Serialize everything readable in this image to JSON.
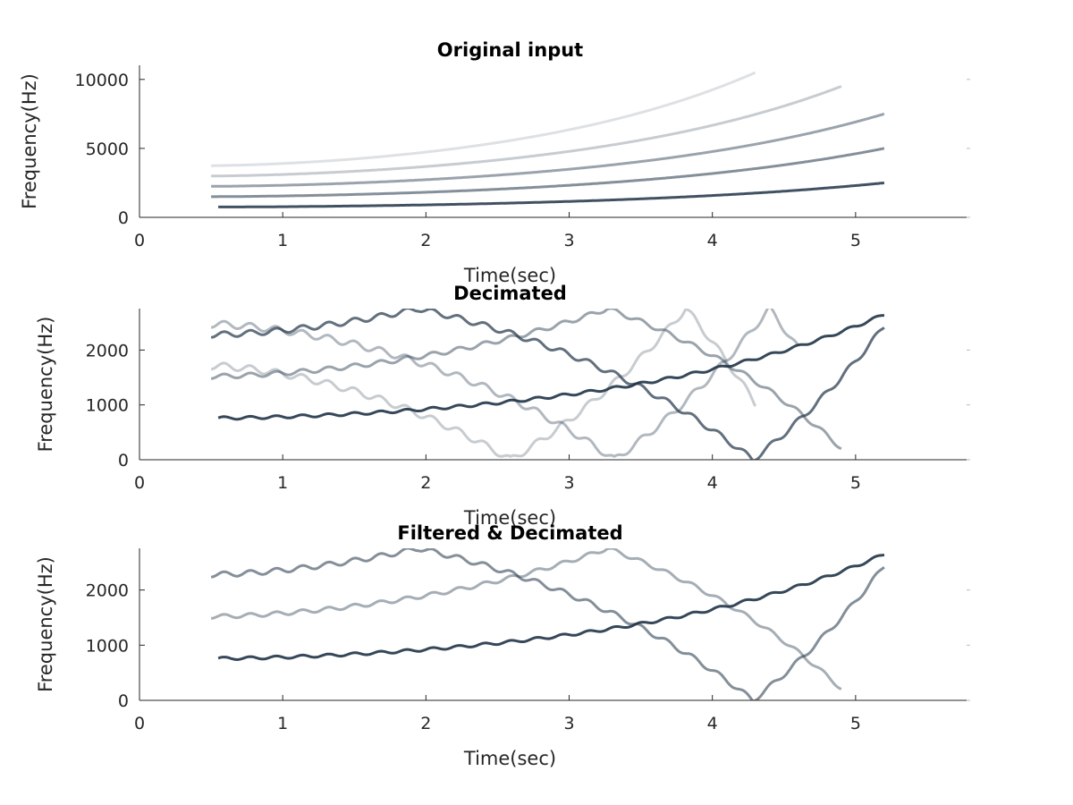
{
  "figure": {
    "background": "#ffffff",
    "mark_color": "#1f3347"
  },
  "chart_data": [
    {
      "type": "heatmap",
      "title": "Original input",
      "xlabel": "Time(sec)",
      "ylabel": "Frequency(Hz)",
      "xlim": [
        0,
        5.8
      ],
      "ylim": [
        0,
        11025
      ],
      "x_ticks": [
        0,
        1,
        2,
        3,
        4,
        5
      ],
      "y_ticks": [
        0,
        5000,
        10000
      ],
      "grid": false,
      "box": "off",
      "series": [
        {
          "t_start": 0.55,
          "t_end": 5.2,
          "f_start": 750,
          "f_end": 2500,
          "curve": "exp",
          "vibrato_hz": 0,
          "intensity": 0.85
        },
        {
          "t_start": 0.5,
          "t_end": 5.2,
          "f_start": 1500,
          "f_end": 5000,
          "curve": "exp",
          "vibrato_hz": 0,
          "intensity": 0.55
        },
        {
          "t_start": 0.5,
          "t_end": 5.2,
          "f_start": 2250,
          "f_end": 7500,
          "curve": "exp",
          "vibrato_hz": 0,
          "intensity": 0.45
        },
        {
          "t_start": 0.5,
          "t_end": 4.9,
          "f_start": 3000,
          "f_end": 9500,
          "curve": "exp",
          "vibrato_hz": 0,
          "intensity": 0.25
        },
        {
          "t_start": 0.5,
          "t_end": 4.3,
          "f_start": 3750,
          "f_end": 10500,
          "curve": "exp",
          "vibrato_hz": 0,
          "intensity": 0.15
        }
      ]
    },
    {
      "type": "heatmap",
      "title": "Decimated",
      "xlabel": "Time(sec)",
      "ylabel": "Frequency(Hz)",
      "xlim": [
        0,
        5.8
      ],
      "ylim": [
        0,
        2756
      ],
      "x_ticks": [
        0,
        1,
        2,
        3,
        4,
        5
      ],
      "y_ticks": [
        0,
        1000,
        2000
      ],
      "grid": false,
      "box": "off",
      "series": [
        {
          "t_start": 0.55,
          "t_end": 5.2,
          "f_start": 760,
          "f_end": 2650,
          "curve": "exp",
          "vibrato_hz": 25,
          "intensity": 0.9
        },
        {
          "t_start": 0.5,
          "t_end": 4.9,
          "f_start": 1520,
          "f_end": 5300,
          "curve": "exp",
          "alias": true,
          "vibrato_hz": 40,
          "intensity": 0.45
        },
        {
          "t_start": 0.5,
          "t_end": 5.2,
          "f_start": 2280,
          "f_end": 7950,
          "curve": "exp",
          "alias": true,
          "vibrato_hz": 50,
          "intensity": 0.7
        },
        {
          "t_start": 0.5,
          "t_end": 4.6,
          "f_start": 3040,
          "f_end": 9000,
          "curve": "exp",
          "alias": true,
          "vibrato_hz": 60,
          "intensity": 0.35
        },
        {
          "t_start": 0.5,
          "t_end": 4.3,
          "f_start": 3800,
          "f_end": 10000,
          "curve": "exp",
          "alias": true,
          "vibrato_hz": 60,
          "intensity": 0.25
        }
      ]
    },
    {
      "type": "heatmap",
      "title": "Filtered & Decimated",
      "xlabel": "Time(sec)",
      "ylabel": "Frequency(Hz)",
      "xlim": [
        0,
        5.8
      ],
      "ylim": [
        0,
        2756
      ],
      "x_ticks": [
        0,
        1,
        2,
        3,
        4,
        5
      ],
      "y_ticks": [
        0,
        1000,
        2000
      ],
      "grid": false,
      "box": "off",
      "series": [
        {
          "t_start": 0.55,
          "t_end": 5.2,
          "f_start": 760,
          "f_end": 2650,
          "curve": "exp",
          "vibrato_hz": 25,
          "intensity": 0.9
        },
        {
          "t_start": 0.5,
          "t_end": 4.9,
          "f_start": 1520,
          "f_end": 5300,
          "curve": "exp",
          "alias": true,
          "vibrato_hz": 35,
          "intensity": 0.4
        },
        {
          "t_start": 0.5,
          "t_end": 5.2,
          "f_start": 2280,
          "f_end": 7950,
          "curve": "exp",
          "alias": true,
          "vibrato_hz": 45,
          "intensity": 0.55
        }
      ]
    }
  ]
}
